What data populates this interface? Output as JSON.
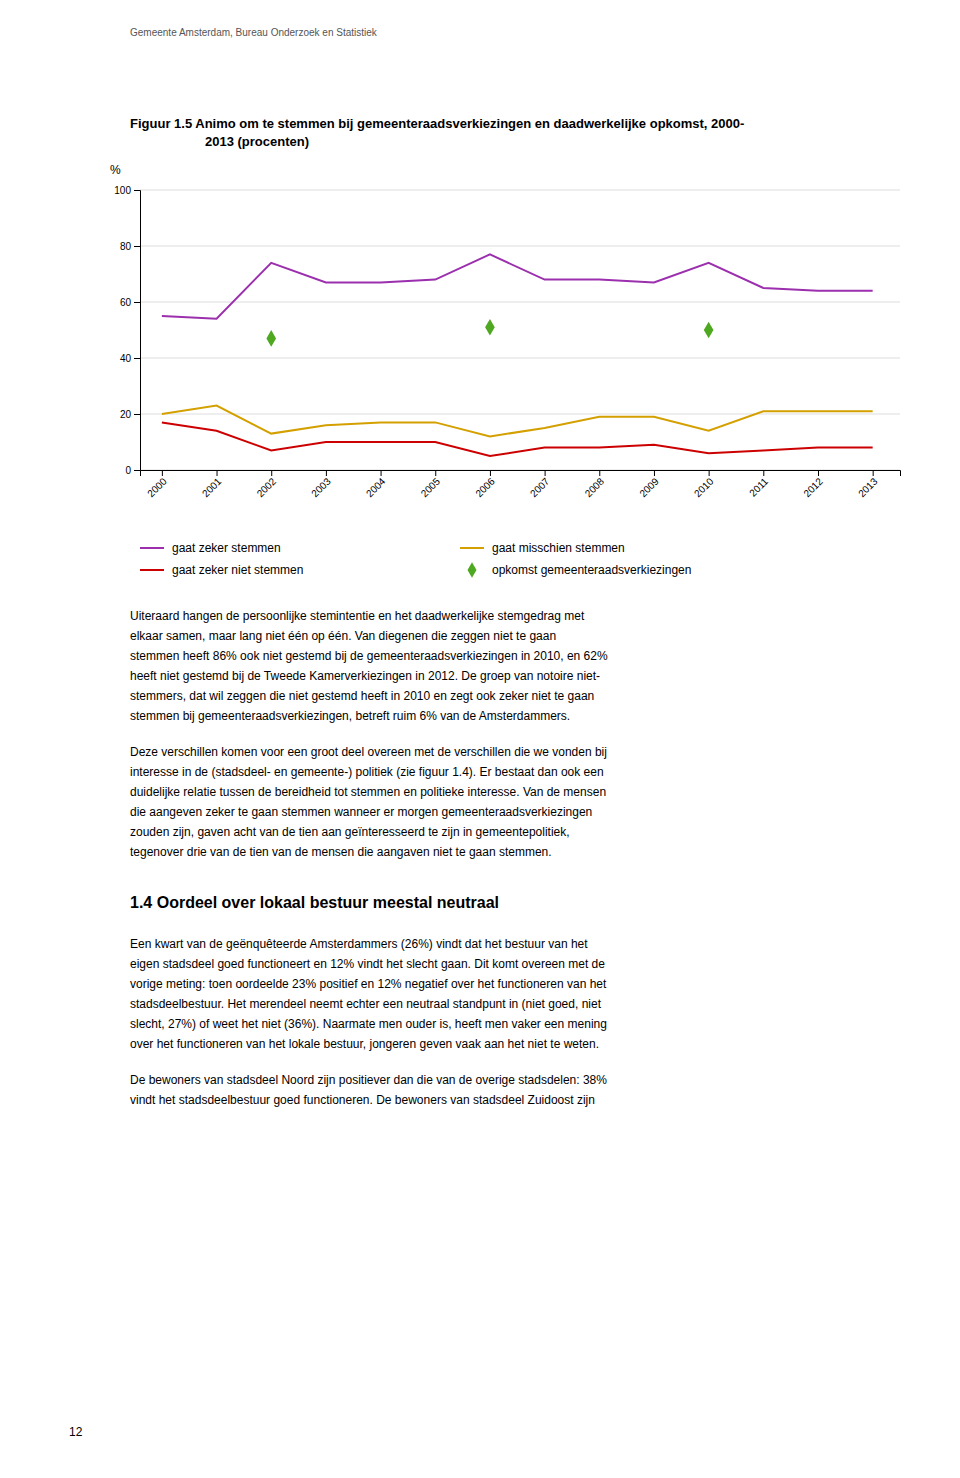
{
  "header_text": "Gemeente Amsterdam, Bureau Onderzoek en Statistiek",
  "chart_data": {
    "type": "line",
    "title": [
      "Figuur 1.5  Animo om te stemmen bij gemeenteraadsverkiezingen en daadwerkelijke opkomst, 2000-",
      "2013 (procenten)"
    ],
    "ylabel": "%",
    "x": [
      2000,
      2001,
      2002,
      2003,
      2004,
      2005,
      2006,
      2007,
      2008,
      2009,
      2010,
      2011,
      2012,
      2013
    ],
    "xlim": [
      1999.6,
      2013.5
    ],
    "xticks": [
      2000,
      2001,
      2002,
      2003,
      2004,
      2005,
      2006,
      2007,
      2008,
      2009,
      2010,
      2011,
      2012,
      2013
    ],
    "ylim": [
      0,
      100
    ],
    "yticks": [
      0,
      20,
      40,
      60,
      80,
      100
    ],
    "grid": true,
    "legend": "bottom",
    "series": [
      {
        "name": "gaat zeker stemmen",
        "type": "line",
        "color": "#9B2FAE",
        "values": [
          55,
          54,
          74,
          67,
          67,
          68,
          77,
          68,
          68,
          67,
          74,
          65,
          64,
          64
        ]
      },
      {
        "name": "gaat misschien stemmen",
        "type": "line",
        "color": "#D4A000",
        "values": [
          20,
          23,
          13,
          16,
          17,
          17,
          12,
          15,
          19,
          19,
          14,
          21,
          21,
          21
        ]
      },
      {
        "name": "gaat zeker niet stemmen",
        "type": "line",
        "color": "#CC0000",
        "values": [
          17,
          14,
          7,
          10,
          10,
          10,
          5,
          8,
          8,
          9,
          6,
          7,
          8,
          8
        ]
      },
      {
        "name": "opkomst gemeenteraadsverkiezingen",
        "type": "scatter",
        "marker": "diamond",
        "color": "#4EA820",
        "x": [
          2002,
          2006,
          2010
        ],
        "values": [
          47,
          51,
          50
        ]
      }
    ]
  },
  "body_paragraphs": [
    [
      "Uiteraard hangen de persoonlijke stemintentie en het daadwerkelijke stemgedrag met",
      "elkaar samen, maar lang niet één op één. Van diegenen die zeggen niet te gaan",
      "stemmen heeft 86% ook niet gestemd bij de gemeenteraadsverkiezingen in 2010, en 62%",
      "heeft niet gestemd bij de Tweede Kamerverkiezingen in 2012. De groep van notoire niet-",
      "stemmers, dat wil zeggen die niet gestemd heeft in 2010 en zegt ook zeker niet te gaan",
      "stemmen bij gemeenteraadsverkiezingen, betreft ruim 6% van de Amsterdammers."
    ],
    [
      "Deze verschillen komen voor een groot deel overeen met de verschillen die we vonden bij",
      "interesse in de (stadsdeel- en gemeente-) politiek (zie figuur 1.4). Er bestaat dan ook een",
      "duidelijke relatie tussen de bereidheid tot stemmen en politieke interesse. Van de mensen",
      "die aangeven zeker te gaan stemmen wanneer er morgen gemeenteraadsverkiezingen",
      "zouden zijn, gaven acht van de tien aan geïnteresseerd te zijn in gemeentepolitiek,",
      "tegenover drie van de tien van de mensen die aangaven niet te gaan stemmen."
    ]
  ],
  "section_title": "1.4  Oordeel over lokaal bestuur meestal neutraal",
  "section_paragraphs": [
    [
      "Een kwart van de geënquêteerde Amsterdammers (26%) vindt dat het bestuur van het",
      "eigen stadsdeel goed functioneert en 12% vindt het slecht gaan. Dit komt overeen met de",
      "vorige meting: toen oordeelde 23% positief en 12% negatief over het functioneren van het",
      "stadsdeelbestuur. Het merendeel neemt echter een neutraal standpunt in (niet goed, niet",
      "slecht, 27%) of weet het niet (36%). Naarmate men ouder is, heeft men vaker een mening",
      "over het functioneren van het lokale bestuur, jongeren geven vaak aan het niet te weten."
    ],
    [
      "De bewoners van stadsdeel Noord zijn positiever dan die van de overige stadsdelen: 38%",
      "vindt het stadsdeelbestuur goed functioneren. De bewoners van stadsdeel Zuidoost zijn"
    ]
  ],
  "page_number": "12"
}
